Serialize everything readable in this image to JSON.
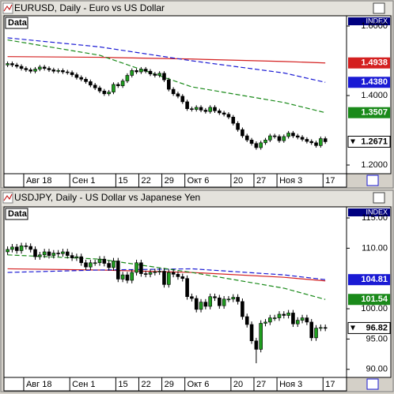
{
  "chart_data": [
    {
      "type": "candlestick",
      "title": "EURUSD, Daily - Euro vs US Dollar",
      "data_label": "Data",
      "index_label": "INDEX",
      "up_color": "#1f9e1f",
      "down_color": "#000000",
      "open": [
        1.488,
        1.492,
        1.488,
        1.484,
        1.478,
        1.474,
        1.47,
        1.476,
        1.482,
        1.478,
        1.474,
        1.47,
        1.472,
        1.468,
        1.466,
        1.46,
        1.452,
        1.447,
        1.44,
        1.43,
        1.422,
        1.413,
        1.405,
        1.41,
        1.432,
        1.428,
        1.442,
        1.458,
        1.472,
        1.468,
        1.476,
        1.47,
        1.462,
        1.458,
        1.464,
        1.445,
        1.418,
        1.405,
        1.398,
        1.382,
        1.362,
        1.36,
        1.366,
        1.358,
        1.354,
        1.366,
        1.356,
        1.35,
        1.346,
        1.338,
        1.32,
        1.302,
        1.284,
        1.272,
        1.262,
        1.25,
        1.264,
        1.272,
        1.284,
        1.282,
        1.27,
        1.282,
        1.292,
        1.284,
        1.28,
        1.274,
        1.268,
        1.264,
        1.256,
        1.276
      ],
      "high": [
        1.498,
        1.498,
        1.494,
        1.49,
        1.484,
        1.48,
        1.482,
        1.488,
        1.488,
        1.484,
        1.48,
        1.478,
        1.478,
        1.474,
        1.472,
        1.466,
        1.458,
        1.453,
        1.446,
        1.436,
        1.428,
        1.419,
        1.416,
        1.438,
        1.438,
        1.448,
        1.464,
        1.478,
        1.478,
        1.482,
        1.482,
        1.476,
        1.468,
        1.47,
        1.47,
        1.451,
        1.424,
        1.411,
        1.404,
        1.388,
        1.368,
        1.372,
        1.372,
        1.364,
        1.372,
        1.372,
        1.362,
        1.356,
        1.352,
        1.344,
        1.326,
        1.308,
        1.29,
        1.278,
        1.268,
        1.27,
        1.278,
        1.29,
        1.29,
        1.288,
        1.288,
        1.298,
        1.298,
        1.29,
        1.286,
        1.28,
        1.274,
        1.27,
        1.282,
        1.282
      ],
      "low": [
        1.482,
        1.482,
        1.478,
        1.472,
        1.468,
        1.464,
        1.464,
        1.47,
        1.472,
        1.468,
        1.464,
        1.464,
        1.462,
        1.46,
        1.454,
        1.446,
        1.441,
        1.434,
        1.424,
        1.416,
        1.407,
        1.399,
        1.399,
        1.404,
        1.422,
        1.422,
        1.436,
        1.452,
        1.462,
        1.462,
        1.464,
        1.456,
        1.452,
        1.452,
        1.439,
        1.412,
        1.399,
        1.392,
        1.376,
        1.356,
        1.354,
        1.354,
        1.352,
        1.348,
        1.348,
        1.35,
        1.344,
        1.34,
        1.332,
        1.314,
        1.296,
        1.278,
        1.266,
        1.256,
        1.244,
        1.244,
        1.258,
        1.266,
        1.276,
        1.264,
        1.264,
        1.276,
        1.278,
        1.274,
        1.268,
        1.262,
        1.258,
        1.25,
        1.25,
        1.261
      ],
      "close": [
        1.492,
        1.488,
        1.484,
        1.478,
        1.474,
        1.47,
        1.476,
        1.482,
        1.478,
        1.474,
        1.47,
        1.472,
        1.468,
        1.466,
        1.46,
        1.452,
        1.447,
        1.44,
        1.43,
        1.422,
        1.413,
        1.405,
        1.41,
        1.432,
        1.428,
        1.442,
        1.458,
        1.472,
        1.468,
        1.476,
        1.47,
        1.462,
        1.458,
        1.464,
        1.445,
        1.418,
        1.405,
        1.398,
        1.382,
        1.362,
        1.36,
        1.366,
        1.358,
        1.354,
        1.366,
        1.356,
        1.35,
        1.346,
        1.338,
        1.32,
        1.302,
        1.284,
        1.272,
        1.262,
        1.25,
        1.264,
        1.272,
        1.284,
        1.282,
        1.27,
        1.282,
        1.292,
        1.284,
        1.28,
        1.274,
        1.268,
        1.264,
        1.256,
        1.276,
        1.2671
      ],
      "lines": [
        {
          "color": "#d42020",
          "x": [
            0,
            20,
            40,
            60,
            69
          ],
          "values": [
            1.512,
            1.51,
            1.505,
            1.498,
            1.4938
          ],
          "end_label": "1.4938"
        },
        {
          "color": "#1a1ad4",
          "x": [
            0,
            20,
            40,
            60,
            69
          ],
          "values": [
            1.566,
            1.54,
            1.5,
            1.465,
            1.438
          ],
          "end_label": "1.4380"
        },
        {
          "color": "#1a8a1a",
          "x": [
            0,
            20,
            40,
            60,
            69
          ],
          "values": [
            1.56,
            1.516,
            1.425,
            1.38,
            1.3507
          ],
          "end_label": "1.3507"
        }
      ],
      "ylim": [
        1.175,
        1.6295
      ],
      "yticks": [
        {
          "value": 1.2,
          "label": "1.2000"
        },
        {
          "value": 1.4,
          "label": "1.4000"
        },
        {
          "value": 1.6,
          "label": "1.6000"
        }
      ],
      "xticks": [
        {
          "value": 4,
          "label": "Авг 18"
        },
        {
          "value": 14,
          "label": "Сен 1"
        },
        {
          "value": 24,
          "label": "15"
        },
        {
          "value": 29,
          "label": "22"
        },
        {
          "value": 34,
          "label": "29"
        },
        {
          "value": 39,
          "label": "Окт 6"
        },
        {
          "value": 49,
          "label": "20"
        },
        {
          "value": 54,
          "label": "27"
        },
        {
          "value": 59,
          "label": "Ноя 3"
        },
        {
          "value": 69,
          "label": "17"
        }
      ]
    },
    {
      "type": "candlestick",
      "title": "USDJPY, Daily - US Dollar vs Japanese Yen",
      "data_label": "Data",
      "index_label": "INDEX",
      "up_color": "#1f9e1f",
      "down_color": "#000000",
      "open": [
        109.4,
        109.8,
        110.2,
        109.6,
        110.4,
        110.3,
        109.8,
        108.6,
        108.9,
        109.4,
        108.8,
        109.2,
        109.1,
        109.4,
        108.8,
        108.4,
        108.6,
        107.6,
        106.9,
        107.6,
        107.6,
        108.2,
        107.5,
        106.8,
        107.9,
        104.9,
        105.6,
        104.7,
        106.0,
        107.6,
        105.8,
        105.7,
        106.0,
        106.1,
        106.2,
        104.0,
        106.0,
        105.7,
        105.3,
        105.0,
        102.0,
        101.7,
        99.9,
        101.1,
        100.4,
        102.0,
        101.8,
        100.5,
        101.6,
        101.6,
        101.9,
        101.2,
        98.7,
        97.4,
        94.7,
        93.3,
        97.6,
        97.8,
        98.5,
        98.5,
        99.1,
        98.9,
        99.3,
        97.5,
        98.1,
        98.5,
        97.8,
        95.2,
        96.8,
        96.9
      ],
      "high": [
        110.3,
        110.7,
        110.7,
        110.9,
        110.9,
        110.8,
        110.3,
        109.4,
        109.9,
        109.9,
        109.7,
        109.7,
        109.9,
        109.9,
        109.3,
        109.1,
        109.1,
        108.1,
        108.1,
        108.1,
        108.7,
        108.7,
        108.0,
        108.4,
        108.4,
        106.1,
        106.1,
        106.5,
        108.1,
        108.1,
        106.3,
        106.5,
        106.6,
        106.7,
        106.7,
        106.5,
        106.5,
        106.2,
        105.8,
        105.5,
        102.5,
        102.2,
        101.6,
        101.6,
        102.5,
        102.5,
        102.3,
        102.1,
        102.1,
        102.4,
        102.4,
        101.7,
        99.2,
        97.9,
        95.2,
        98.1,
        98.3,
        99.0,
        99.0,
        99.6,
        99.6,
        99.8,
        99.8,
        98.6,
        99.0,
        99.0,
        98.3,
        97.3,
        97.4,
        97.4
      ],
      "low": [
        108.9,
        109.3,
        109.1,
        109.1,
        109.8,
        109.3,
        108.1,
        108.1,
        108.4,
        108.3,
        108.3,
        108.6,
        108.6,
        108.3,
        107.9,
        107.9,
        107.1,
        106.4,
        106.4,
        107.1,
        107.1,
        107.0,
        106.3,
        106.3,
        104.4,
        104.4,
        104.2,
        104.2,
        105.5,
        105.3,
        105.2,
        105.2,
        105.5,
        105.6,
        103.5,
        103.5,
        105.2,
        104.8,
        104.5,
        101.5,
        101.2,
        99.4,
        99.4,
        99.9,
        99.9,
        101.3,
        100.0,
        100.0,
        101.1,
        101.1,
        100.7,
        98.2,
        96.9,
        94.2,
        91.0,
        92.8,
        97.1,
        97.3,
        98.0,
        98.0,
        98.4,
        98.4,
        97.0,
        97.0,
        97.6,
        97.3,
        94.7,
        94.7,
        96.3,
        96.3
      ],
      "close": [
        109.8,
        110.2,
        109.6,
        110.4,
        110.3,
        109.8,
        108.6,
        108.9,
        109.4,
        108.8,
        109.2,
        109.1,
        109.4,
        108.8,
        108.4,
        108.6,
        107.6,
        106.9,
        107.6,
        107.6,
        108.2,
        107.5,
        106.8,
        107.9,
        104.9,
        105.6,
        104.7,
        106.0,
        107.6,
        105.8,
        105.7,
        106.0,
        106.1,
        106.2,
        104.0,
        106.0,
        105.7,
        105.3,
        105.0,
        102.0,
        101.7,
        99.9,
        101.1,
        100.4,
        102.0,
        101.8,
        100.5,
        101.6,
        101.6,
        101.9,
        101.2,
        98.7,
        97.4,
        94.7,
        93.3,
        97.6,
        97.8,
        98.5,
        98.5,
        99.1,
        98.9,
        99.3,
        97.5,
        98.1,
        98.5,
        97.8,
        95.2,
        96.8,
        96.9,
        96.82
      ],
      "lines": [
        {
          "color": "#d42020",
          "x": [
            0,
            20,
            40,
            60,
            69
          ],
          "values": [
            106.6,
            106.4,
            106.0,
            105.2,
            104.6
          ]
        },
        {
          "color": "#1a1ad4",
          "x": [
            0,
            20,
            40,
            60,
            69
          ],
          "values": [
            106.0,
            106.4,
            106.6,
            105.6,
            104.81
          ],
          "end_label": "104.81"
        },
        {
          "color": "#1a8a1a",
          "x": [
            0,
            20,
            40,
            60,
            69
          ],
          "values": [
            108.9,
            108.2,
            106.0,
            103.4,
            101.54
          ],
          "end_label": "101.54"
        }
      ],
      "ylim": [
        88.66,
        116.83
      ],
      "yticks": [
        {
          "value": 90,
          "label": "90.00"
        },
        {
          "value": 95,
          "label": "95.00"
        },
        {
          "value": 100,
          "label": "100.00"
        },
        {
          "value": 110,
          "label": "110.00"
        },
        {
          "value": 115,
          "label": "115.00"
        }
      ],
      "xticks": [
        {
          "value": 4,
          "label": "Авг 18"
        },
        {
          "value": 14,
          "label": "Сен 1"
        },
        {
          "value": 24,
          "label": "15"
        },
        {
          "value": 29,
          "label": "22"
        },
        {
          "value": 34,
          "label": "29"
        },
        {
          "value": 39,
          "label": "Окт 6"
        },
        {
          "value": 49,
          "label": "20"
        },
        {
          "value": 54,
          "label": "27"
        },
        {
          "value": 59,
          "label": "Ноя 3"
        },
        {
          "value": 69,
          "label": "17"
        }
      ]
    }
  ]
}
